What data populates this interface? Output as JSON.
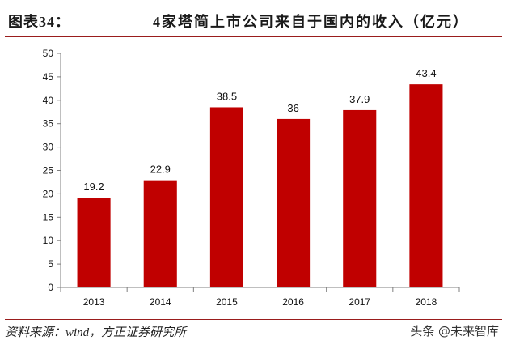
{
  "header": {
    "figure_label": "图表34：",
    "title": "4家塔简上市公司来自于国内的收入（亿元）"
  },
  "footer": {
    "source": "资料来源：wind，方正证券研究所",
    "watermark": "头条 @未来智库"
  },
  "colors": {
    "bar": "#c00000",
    "axis": "#7f7f7f",
    "rule": "#9a1d1d"
  },
  "chart_data": {
    "type": "bar",
    "categories": [
      "2013",
      "2014",
      "2015",
      "2016",
      "2017",
      "2018"
    ],
    "values": [
      19.2,
      22.9,
      38.5,
      36,
      37.9,
      43.4
    ],
    "data_labels": [
      "19.2",
      "22.9",
      "38.5",
      "36",
      "37.9",
      "43.4"
    ],
    "yticks": [
      0,
      5,
      10,
      15,
      20,
      25,
      30,
      35,
      40,
      45,
      50
    ],
    "ylim": [
      0,
      50
    ],
    "grid": false,
    "legend": "none",
    "title": "4家塔简上市公司来自于国内的收入（亿元）",
    "xlabel": "",
    "ylabel": ""
  }
}
